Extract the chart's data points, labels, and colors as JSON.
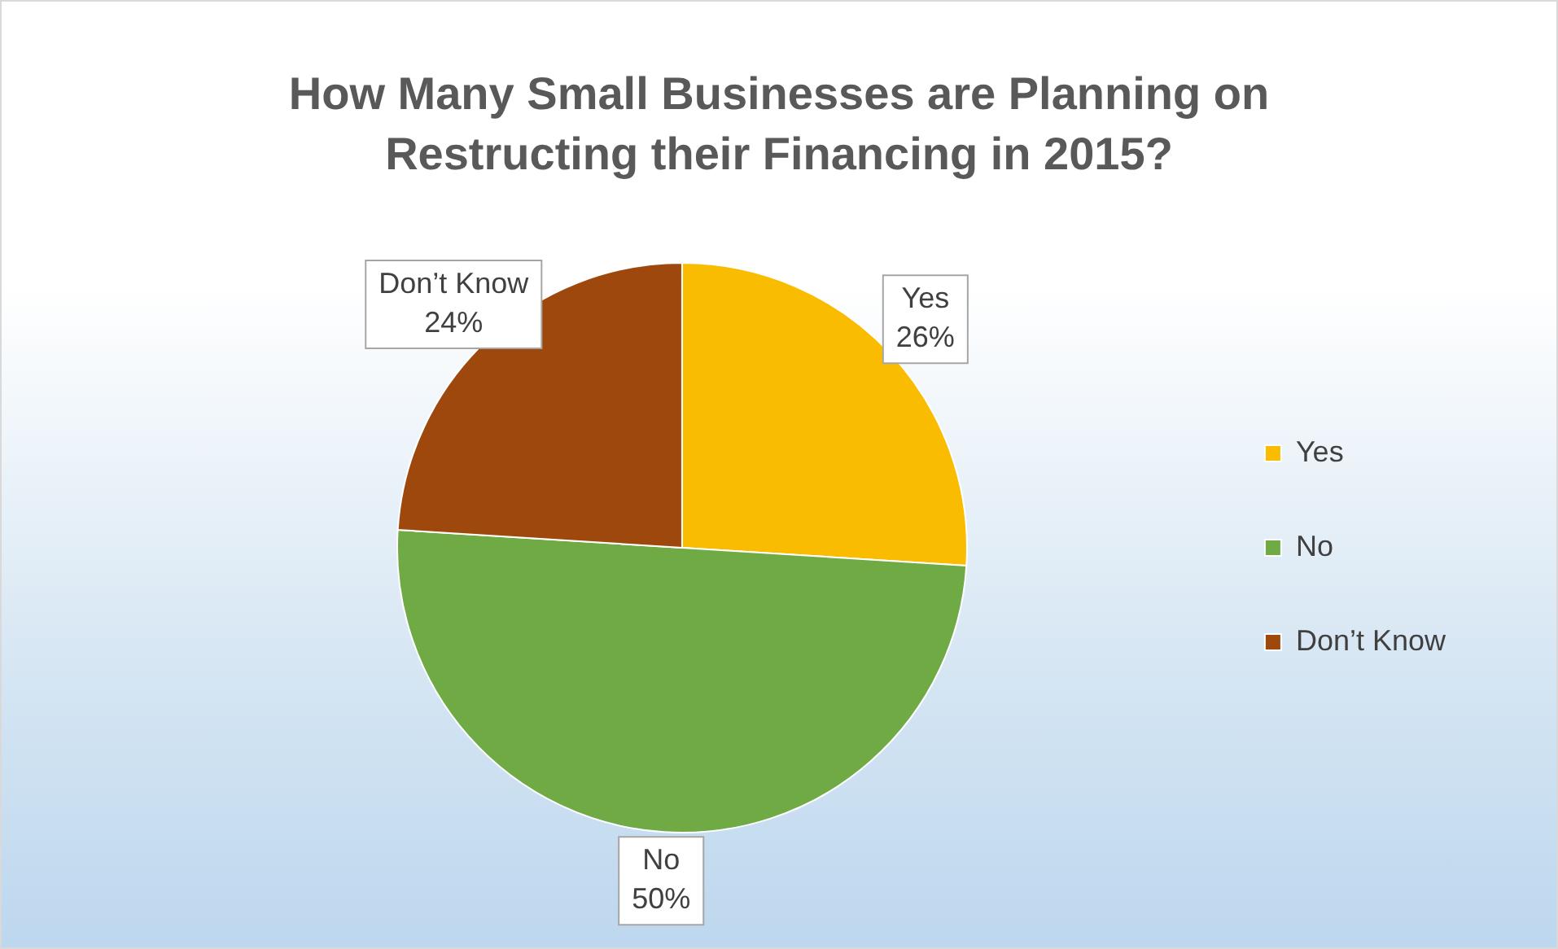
{
  "chart_data": {
    "type": "pie",
    "title": "How Many Small Businesses are Planning on Restructing their Financing in 2015?",
    "categories": [
      "Yes",
      "No",
      "Don’t Know"
    ],
    "values": [
      26,
      50,
      24
    ],
    "value_labels": [
      "26%",
      "50%",
      "24%"
    ],
    "colors": [
      "#f9bc00",
      "#6faa45",
      "#9e480e"
    ],
    "legend": "right"
  }
}
